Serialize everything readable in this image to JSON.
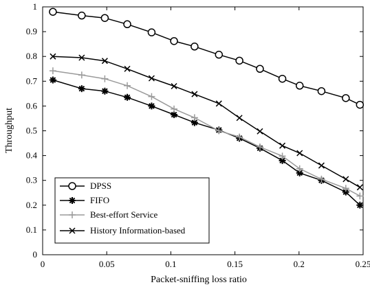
{
  "chart_data": {
    "type": "line",
    "title": "",
    "xlabel": "Packet-sniffing loss ratio",
    "ylabel": "Throughput",
    "xlim": [
      0,
      0.25
    ],
    "ylim": [
      0,
      1
    ],
    "xticks": [
      0,
      0.05,
      0.1,
      0.15,
      0.2,
      0.25
    ],
    "xtick_labels": [
      "0",
      "0.05",
      "0.1",
      "0.15",
      "0.2",
      "0.25"
    ],
    "yticks": [
      0,
      0.1,
      0.2,
      0.3,
      0.4,
      0.5,
      0.6,
      0.7,
      0.8,
      0.9,
      1
    ],
    "ytick_labels": [
      "0",
      "0.1",
      "0.2",
      "0.3",
      "0.4",
      "0.5",
      "0.6",
      "0.7",
      "0.8",
      "0.9",
      "1"
    ],
    "grid": false,
    "legend_position": "bottom-left",
    "x": [
      0.008,
      0.0305,
      0.0485,
      0.066,
      0.085,
      0.1025,
      0.1185,
      0.1375,
      0.1535,
      0.1695,
      0.187,
      0.2005,
      0.2175,
      0.2365,
      0.2475
    ],
    "series": [
      {
        "name": "DPSS",
        "marker": "circle",
        "color": "#000000",
        "values": [
          0.98,
          0.965,
          0.955,
          0.93,
          0.897,
          0.862,
          0.84,
          0.807,
          0.783,
          0.75,
          0.71,
          0.682,
          0.66,
          0.632,
          0.605
        ]
      },
      {
        "name": "FIFO",
        "marker": "asterisk",
        "color": "#000000",
        "values": [
          0.705,
          0.67,
          0.66,
          0.635,
          0.6,
          0.565,
          0.533,
          0.503,
          0.47,
          0.43,
          0.38,
          0.33,
          0.3,
          0.253,
          0.2
        ]
      },
      {
        "name": "Best-effort Service",
        "marker": "plus",
        "color": "#9a9a9a",
        "values": [
          0.742,
          0.725,
          0.71,
          0.682,
          0.638,
          0.588,
          0.553,
          0.5,
          0.475,
          0.435,
          0.398,
          0.347,
          0.305,
          0.268,
          0.237
        ]
      },
      {
        "name": "History Information-based",
        "marker": "cross",
        "color": "#000000",
        "values": [
          0.8,
          0.795,
          0.782,
          0.75,
          0.712,
          0.68,
          0.648,
          0.61,
          0.552,
          0.498,
          0.44,
          0.41,
          0.36,
          0.305,
          0.272
        ]
      }
    ]
  }
}
